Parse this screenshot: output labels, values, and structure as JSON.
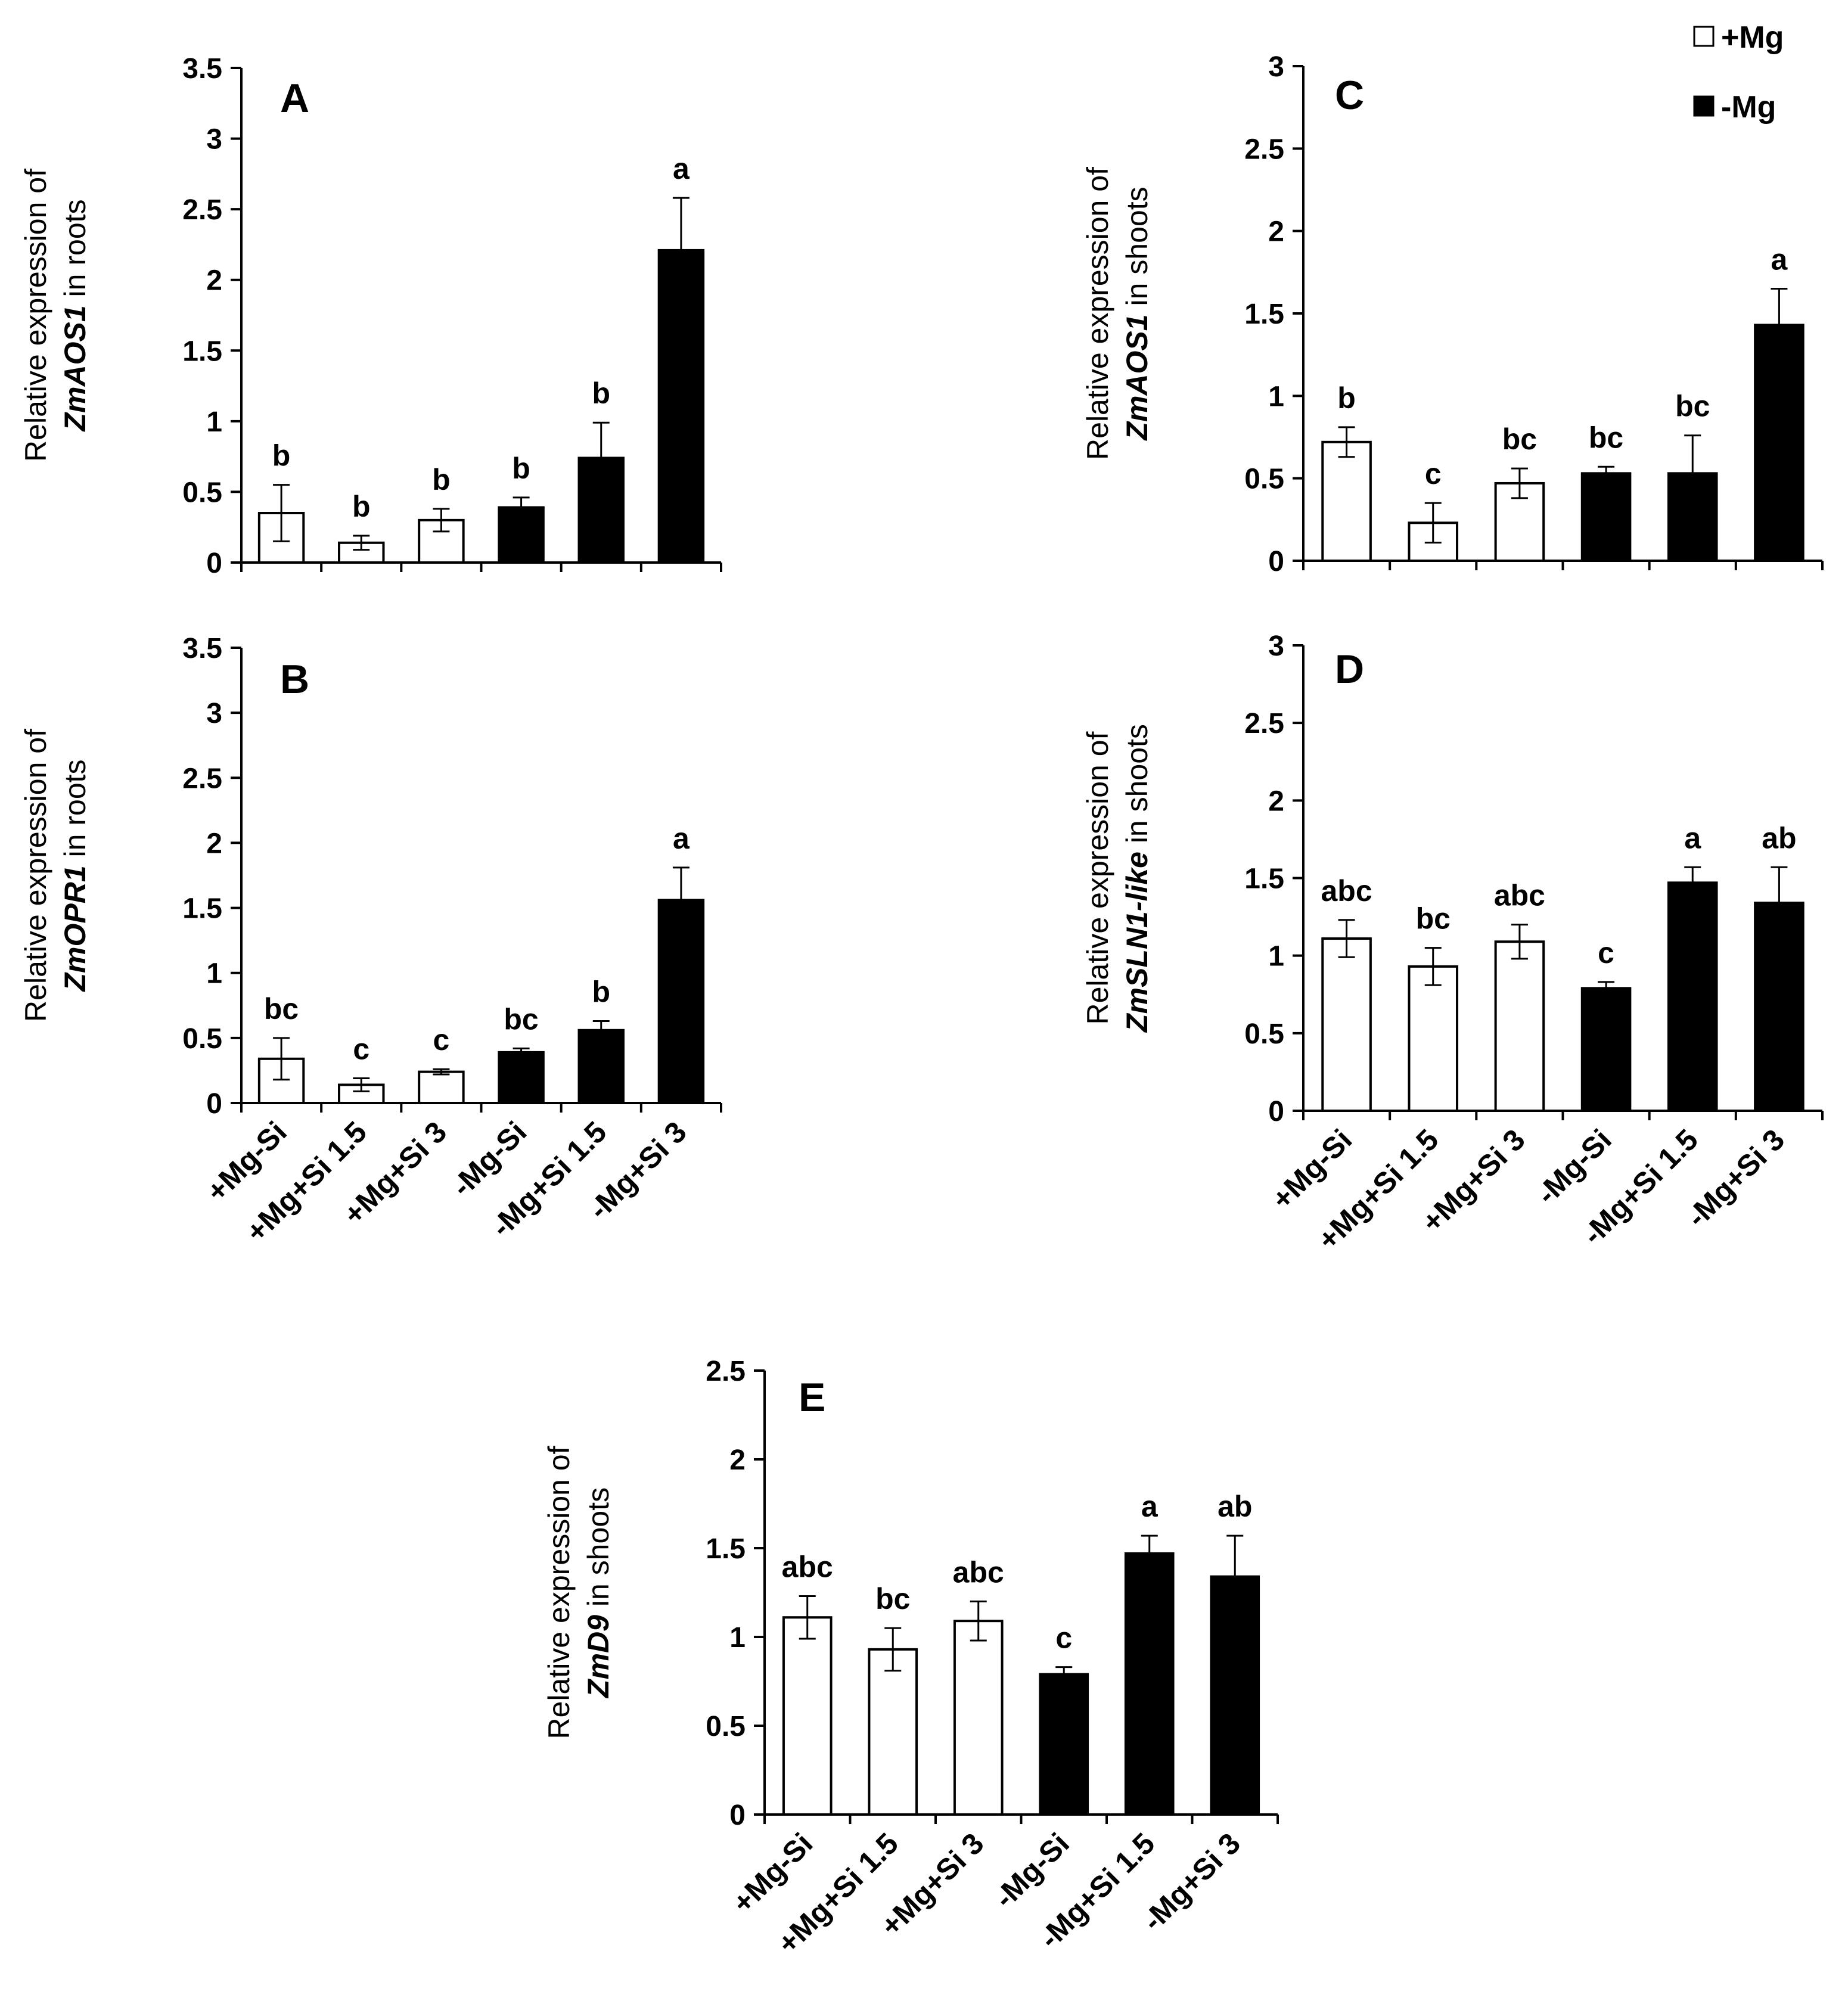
{
  "figure": {
    "legend": [
      {
        "name": "+Mg",
        "fill": "#ffffff"
      },
      {
        "name": "-Mg",
        "fill": "#000000"
      }
    ]
  },
  "colors": {
    "plus_mg": "#ffffff",
    "minus_mg": "#000000",
    "outline": "#000000"
  },
  "chart_data": [
    {
      "panel": "A",
      "type": "bar",
      "categories": [
        "+Mg-Si",
        "+Mg+Si 1.5",
        "+Mg+Si 3",
        "-Mg-Si",
        "-Mg+Si 1.5",
        "-Mg+Si 3"
      ],
      "values": [
        0.35,
        0.14,
        0.3,
        0.39,
        0.74,
        2.21
      ],
      "errors": [
        0.2,
        0.05,
        0.08,
        0.07,
        0.25,
        0.37
      ],
      "letters": [
        "b",
        "b",
        "b",
        "b",
        "b",
        "a"
      ],
      "groups": [
        "+Mg",
        "+Mg",
        "+Mg",
        "-Mg",
        "-Mg",
        "-Mg"
      ],
      "ylabel_line1": "Relative expression of",
      "ylabel_gene": "ZmAOS1",
      "ylabel_rest": " in roots",
      "ylim": [
        0,
        3.5
      ],
      "yticks": [
        "0",
        "0.5",
        "1",
        "1.5",
        "2",
        "2.5",
        "3",
        "3.5"
      ],
      "show_xlabels": false
    },
    {
      "panel": "B",
      "type": "bar",
      "categories": [
        "+Mg-Si",
        "+Mg+Si 1.5",
        "+Mg+Si 3",
        "-Mg-Si",
        "-Mg+Si 1.5",
        "-Mg+Si 3"
      ],
      "values": [
        0.34,
        0.14,
        0.24,
        0.39,
        0.56,
        1.56
      ],
      "errors": [
        0.16,
        0.05,
        0.02,
        0.03,
        0.07,
        0.25
      ],
      "letters": [
        "bc",
        "c",
        "c",
        "bc",
        "b",
        "a"
      ],
      "groups": [
        "+Mg",
        "+Mg",
        "+Mg",
        "-Mg",
        "-Mg",
        "-Mg"
      ],
      "ylabel_line1": "Relative expression of",
      "ylabel_gene": "ZmOPR1",
      "ylabel_rest": " in roots",
      "ylim": [
        0,
        3.5
      ],
      "yticks": [
        "0",
        "0.5",
        "1",
        "1.5",
        "2",
        "2.5",
        "3",
        "3.5"
      ],
      "show_xlabels": true
    },
    {
      "panel": "C",
      "type": "bar",
      "categories": [
        "+Mg-Si",
        "+Mg+Si 1.5",
        "+Mg+Si 3",
        "-Mg-Si",
        "-Mg+Si 1.5",
        "-Mg+Si 3"
      ],
      "values": [
        0.72,
        0.23,
        0.47,
        0.53,
        0.53,
        1.43
      ],
      "errors": [
        0.09,
        0.12,
        0.09,
        0.04,
        0.23,
        0.22
      ],
      "letters": [
        "b",
        "c",
        "bc",
        "bc",
        "bc",
        "a"
      ],
      "groups": [
        "+Mg",
        "+Mg",
        "+Mg",
        "-Mg",
        "-Mg",
        "-Mg"
      ],
      "ylabel_line1": "Relative expression of",
      "ylabel_gene": "ZmAOS1",
      "ylabel_rest": " in shoots",
      "ylim": [
        0,
        3
      ],
      "yticks": [
        "0",
        "0.5",
        "1",
        "1.5",
        "2",
        "2.5",
        "3"
      ],
      "show_xlabels": false
    },
    {
      "panel": "D",
      "type": "bar",
      "categories": [
        "+Mg-Si",
        "+Mg+Si 1.5",
        "+Mg+Si 3",
        "-Mg-Si",
        "-Mg+Si 1.5",
        "-Mg+Si 3"
      ],
      "values": [
        1.11,
        0.93,
        1.09,
        0.79,
        1.47,
        1.34
      ],
      "errors": [
        0.12,
        0.12,
        0.11,
        0.04,
        0.1,
        0.23
      ],
      "letters": [
        "abc",
        "bc",
        "abc",
        "c",
        "a",
        "ab"
      ],
      "groups": [
        "+Mg",
        "+Mg",
        "+Mg",
        "-Mg",
        "-Mg",
        "-Mg"
      ],
      "ylabel_line1": "Relative expression of",
      "ylabel_gene": "ZmSLN1-like",
      "ylabel_rest": " in shoots",
      "ylim": [
        0,
        3
      ],
      "yticks": [
        "0",
        "0.5",
        "1",
        "1.5",
        "2",
        "2.5",
        "3"
      ],
      "show_xlabels": true
    },
    {
      "panel": "E",
      "type": "bar",
      "categories": [
        "+Mg-Si",
        "+Mg+Si 1.5",
        "+Mg+Si 3",
        "-Mg-Si",
        "-Mg+Si 1.5",
        "-Mg+Si 3"
      ],
      "values": [
        1.11,
        0.93,
        1.09,
        0.79,
        1.47,
        1.34
      ],
      "errors": [
        0.12,
        0.12,
        0.11,
        0.04,
        0.1,
        0.23
      ],
      "letters": [
        "abc",
        "bc",
        "abc",
        "c",
        "a",
        "ab"
      ],
      "groups": [
        "+Mg",
        "+Mg",
        "+Mg",
        "-Mg",
        "-Mg",
        "-Mg"
      ],
      "ylabel_line1": "Relative expression of",
      "ylabel_gene": "ZmD9",
      "ylabel_rest": " in shoots",
      "ylim": [
        0,
        2.5
      ],
      "yticks": [
        "0",
        "0.5",
        "1",
        "1.5",
        "2",
        "2.5"
      ],
      "show_xlabels": true
    }
  ]
}
